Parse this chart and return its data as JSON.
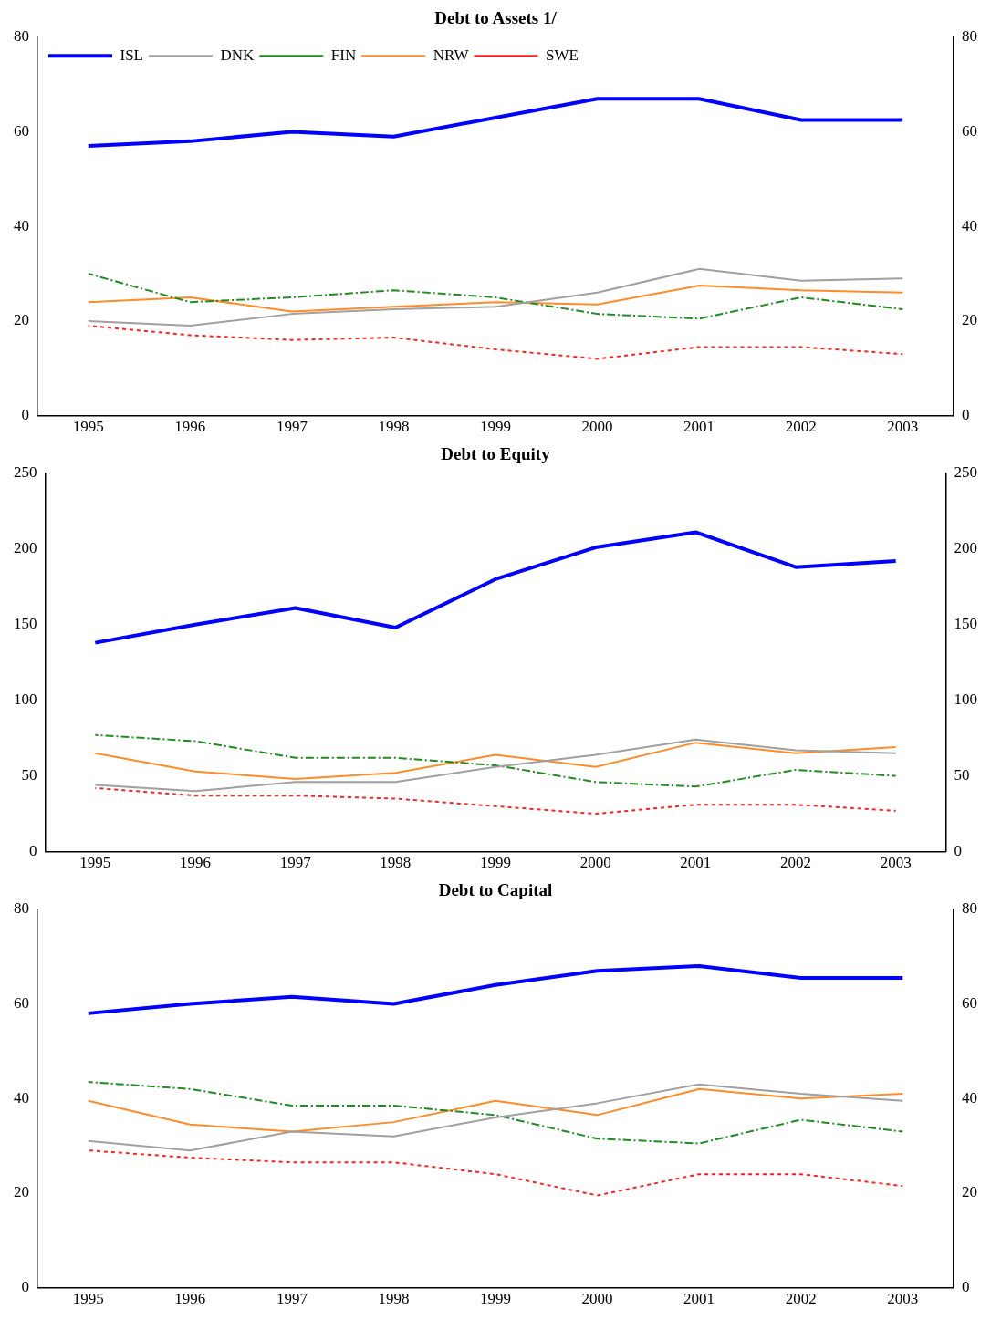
{
  "chart_data": [
    {
      "type": "line",
      "title": "Debt to Assets 1/",
      "categories": [
        "1995",
        "1996",
        "1997",
        "1998",
        "1999",
        "2000",
        "2001",
        "2002",
        "2003"
      ],
      "ylim": [
        0,
        80
      ],
      "yticks": [
        0,
        20,
        40,
        60,
        80
      ],
      "y2lim": [
        0,
        80
      ],
      "y2ticks": [
        0,
        20,
        40,
        60,
        80
      ],
      "grid": false,
      "legend": "top left",
      "marker": "none",
      "series": [
        {
          "name": "ISL",
          "color": "#0000ff",
          "line_style": "solid",
          "values": [
            57,
            58,
            60,
            59,
            63,
            67,
            67,
            62.5,
            62.5
          ]
        },
        {
          "name": "DNK",
          "color": "#a0a0a0",
          "line_style": "solid",
          "values": [
            20,
            19,
            21.5,
            22.5,
            23,
            26,
            31,
            28.5,
            29
          ]
        },
        {
          "name": "FIN",
          "color": "#228b22",
          "line_style": "dashed",
          "values": [
            30,
            24,
            25,
            26.5,
            25,
            21.5,
            20.5,
            25,
            22.5
          ]
        },
        {
          "name": "NRW",
          "color": "#ff8c2a",
          "line_style": "solid",
          "values": [
            24,
            25,
            22,
            23,
            24,
            23.5,
            27.5,
            26.5,
            26
          ]
        },
        {
          "name": "SWE",
          "color": "#ff2020",
          "line_style": "dotted",
          "values": [
            19,
            17,
            16,
            16.5,
            14,
            12,
            14.5,
            14.5,
            13
          ]
        }
      ]
    },
    {
      "type": "line",
      "title": "Debt to Equity",
      "categories": [
        "1995",
        "1996",
        "1997",
        "1998",
        "1999",
        "2000",
        "2001",
        "2002",
        "2003"
      ],
      "ylim": [
        0,
        250
      ],
      "yticks": [
        0,
        50,
        100,
        150,
        200,
        250
      ],
      "y2lim": [
        0,
        250
      ],
      "y2ticks": [
        0,
        50,
        100,
        150,
        200,
        250
      ],
      "grid": false,
      "legend": false,
      "marker": "none",
      "series": [
        {
          "color": "#0000ff",
          "line_style": "solid",
          "values": [
            138,
            150,
            161,
            148,
            180,
            201,
            211,
            188,
            192
          ]
        },
        {
          "color": "#a0a0a0",
          "line_style": "solid",
          "values": [
            44,
            40,
            46,
            46,
            56,
            64,
            74,
            67,
            65
          ]
        },
        {
          "color": "#228b22",
          "line_style": "dashed",
          "values": [
            77,
            73,
            62,
            62,
            57,
            46,
            43,
            54,
            50
          ]
        },
        {
          "color": "#ff8c2a",
          "line_style": "solid",
          "values": [
            65,
            53,
            48,
            52,
            64,
            56,
            72,
            65,
            69
          ]
        },
        {
          "color": "#ff2020",
          "line_style": "dotted",
          "values": [
            42,
            37,
            37,
            35,
            30,
            25,
            31,
            31,
            27
          ]
        }
      ]
    },
    {
      "type": "line",
      "title": "Debt to Capital",
      "categories": [
        "1995",
        "1996",
        "1997",
        "1998",
        "1999",
        "2000",
        "2001",
        "2002",
        "2003"
      ],
      "ylim": [
        0,
        80
      ],
      "yticks": [
        0,
        20,
        40,
        60,
        80
      ],
      "y2lim": [
        0,
        80
      ],
      "y2ticks": [
        0,
        20,
        40,
        60,
        80
      ],
      "grid": false,
      "legend": false,
      "marker": "none",
      "series": [
        {
          "color": "#0000ff",
          "line_style": "solid",
          "values": [
            58,
            60,
            61.5,
            60,
            64,
            67,
            68,
            65.5,
            65.5
          ]
        },
        {
          "color": "#a0a0a0",
          "line_style": "solid",
          "values": [
            31,
            29,
            33,
            32,
            36,
            39,
            43,
            41,
            39.5
          ]
        },
        {
          "color": "#228b22",
          "line_style": "dashed",
          "values": [
            43.5,
            42,
            38.5,
            38.5,
            36.5,
            31.5,
            30.5,
            35.5,
            33
          ]
        },
        {
          "color": "#ff8c2a",
          "line_style": "solid",
          "values": [
            39.5,
            34.5,
            33,
            35,
            39.5,
            36.5,
            42,
            40,
            41
          ]
        },
        {
          "color": "#ff2020",
          "line_style": "dotted",
          "values": [
            29,
            27.5,
            26.5,
            26.5,
            24,
            19.5,
            24,
            24,
            21.5
          ]
        }
      ]
    }
  ]
}
